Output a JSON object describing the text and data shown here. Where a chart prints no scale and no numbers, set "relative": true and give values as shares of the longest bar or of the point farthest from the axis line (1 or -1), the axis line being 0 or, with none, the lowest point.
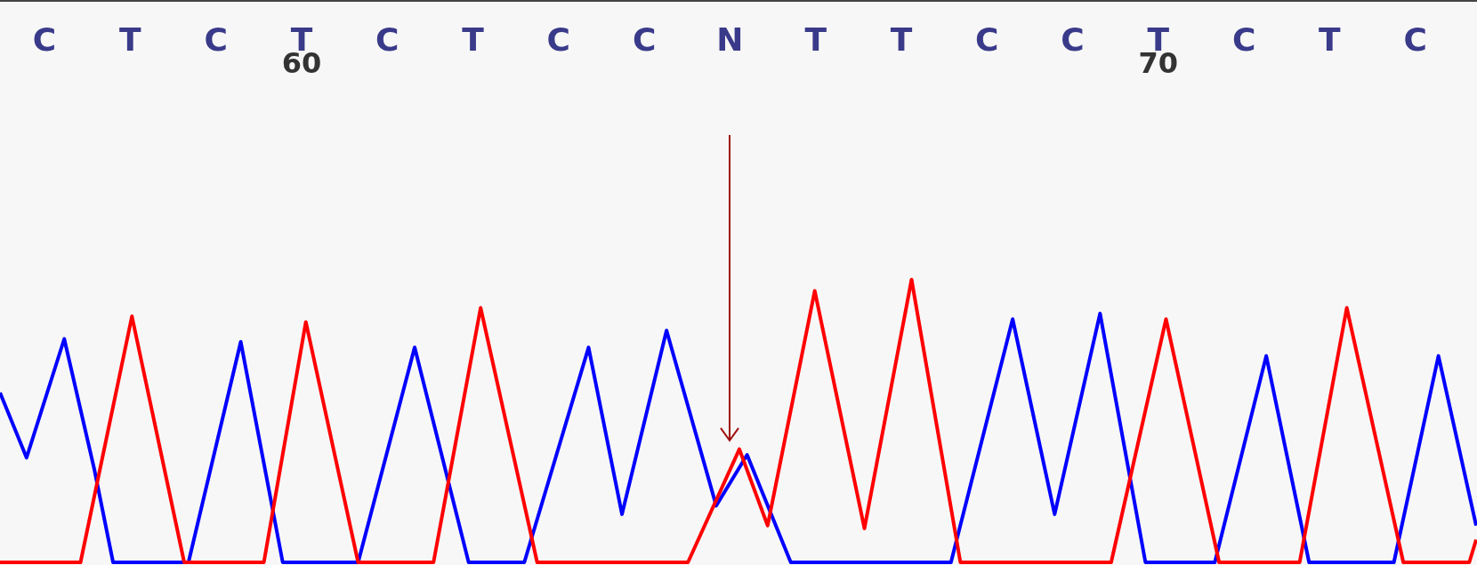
{
  "chart_data": {
    "type": "line",
    "relative": true,
    "xlim": [
      56.48,
      73.72
    ],
    "xticks": [
      60,
      70
    ],
    "marker": "none",
    "line_style": "solid",
    "grid": false,
    "annotations": [
      "C",
      "T",
      "C",
      "T",
      "C",
      "T",
      "C",
      "C",
      "N",
      "T",
      "T",
      "C",
      "C",
      "T",
      "C",
      "T",
      "C"
    ],
    "ref_lines": [
      {
        "axis": "x",
        "value": 65,
        "color": "#a01010"
      }
    ],
    "series": [
      {
        "color": "#0000ff",
        "x": [
          56.48,
          56.79,
          57.23,
          57.58,
          57.8,
          58.68,
          59.29,
          59.78,
          60.66,
          61.32,
          61.95,
          62.6,
          63.35,
          63.74,
          64.26,
          64.84,
          65.2,
          65.71,
          67.58,
          68.3,
          68.79,
          69.32,
          69.85,
          70.66,
          71.26,
          71.76,
          72.75,
          73.27,
          73.71
        ],
        "values": [
          0.6,
          0.37,
          0.79,
          0.33,
          0,
          0,
          0.78,
          0,
          0,
          0.76,
          0,
          0,
          0.76,
          0.17,
          0.82,
          0.2,
          0.38,
          0,
          0,
          0.86,
          0.17,
          0.88,
          0,
          0,
          0.73,
          0,
          0,
          0.73,
          0.13
        ]
      },
      {
        "color": "#ff0000",
        "x": [
          56.48,
          57.42,
          58.02,
          58.63,
          59.56,
          60.05,
          60.66,
          61.54,
          62.09,
          62.75,
          64.51,
          65.11,
          65.44,
          65.99,
          66.57,
          67.12,
          67.69,
          69.45,
          70.09,
          70.71,
          71.65,
          72.2,
          72.86,
          73.63,
          73.71
        ],
        "values": [
          0,
          0,
          0.87,
          0,
          0,
          0.85,
          0,
          0,
          0.9,
          0,
          0,
          0.4,
          0.13,
          0.96,
          0.12,
          1,
          0,
          0,
          0.86,
          0,
          0,
          0.9,
          0,
          0,
          0.08
        ]
      }
    ]
  }
}
